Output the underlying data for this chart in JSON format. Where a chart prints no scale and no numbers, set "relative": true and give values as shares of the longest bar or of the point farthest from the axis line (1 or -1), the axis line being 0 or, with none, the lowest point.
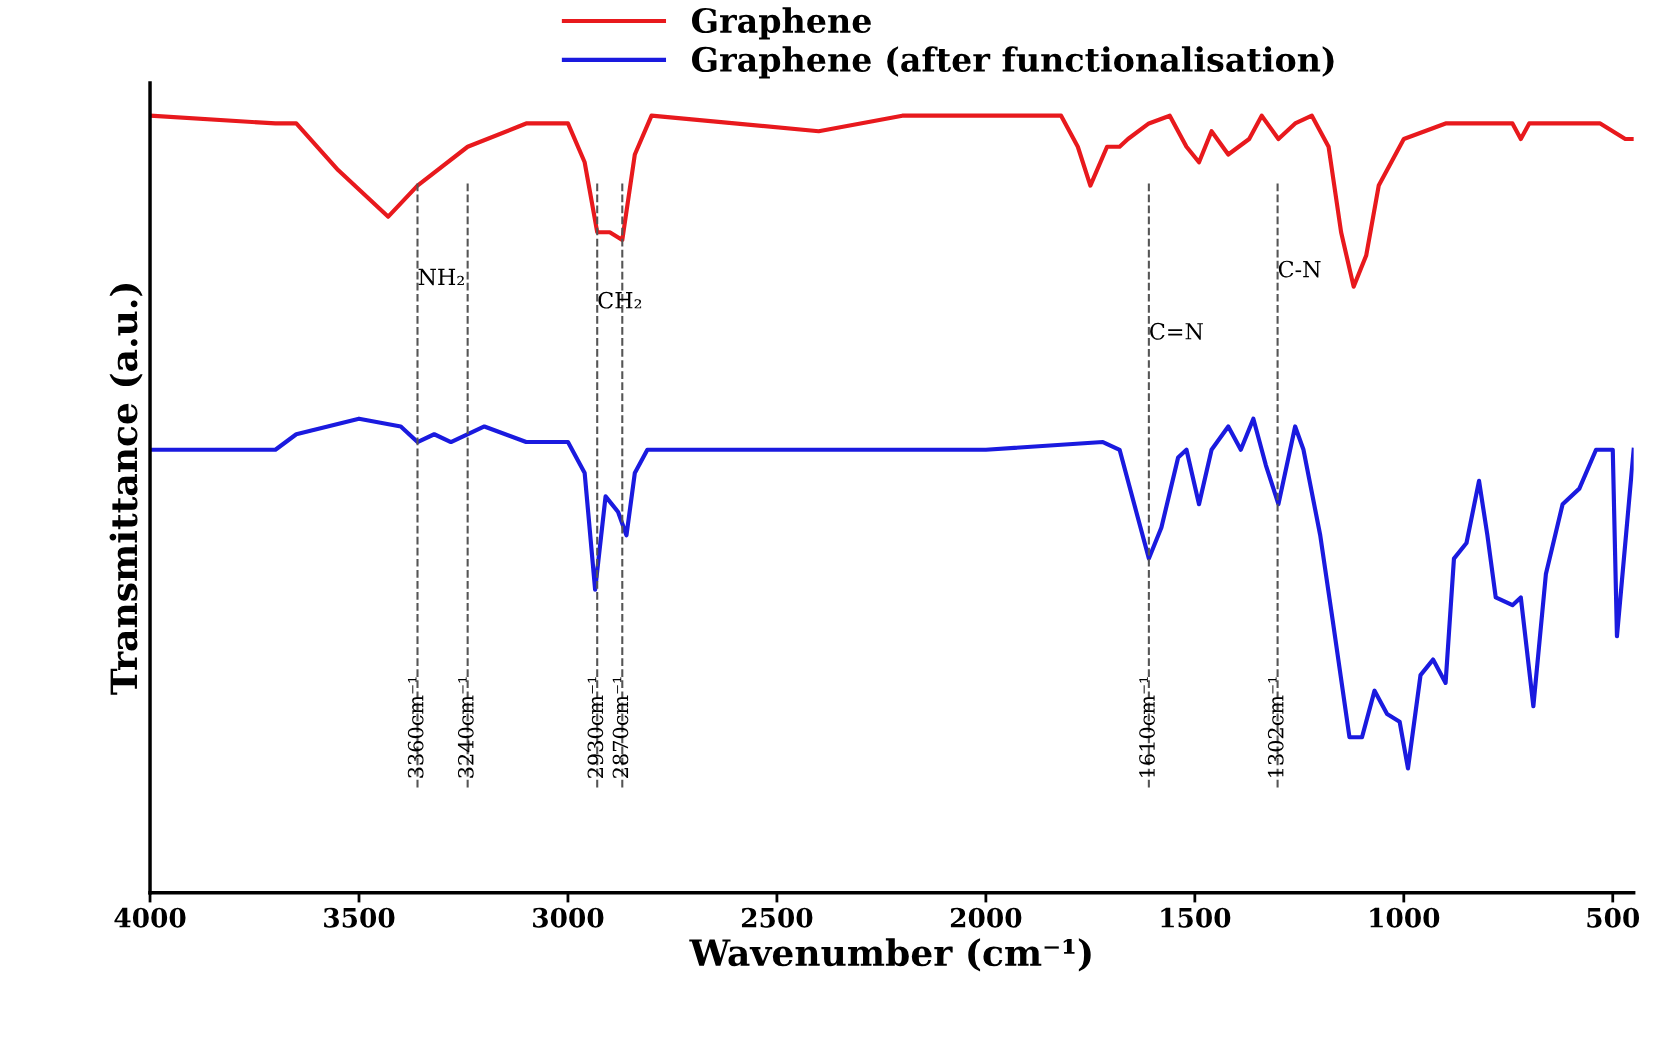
{
  "chart_data": {
    "type": "line",
    "xlabel": "Wavenumber (cm⁻¹)",
    "ylabel": "Transmittance (a.u.)",
    "relative": true,
    "xlim": [
      4000,
      450
    ],
    "xticks": [
      4000,
      3500,
      3000,
      2500,
      2000,
      1500,
      1000,
      500
    ],
    "legend": "top",
    "grid": false,
    "series": [
      {
        "name": "Graphene",
        "color": "#e8191d",
        "x": [
          4000,
          3700,
          3650,
          3550,
          3430,
          3360,
          3240,
          3100,
          3000,
          2960,
          2930,
          2900,
          2870,
          2840,
          2800,
          2400,
          2200,
          1820,
          1780,
          1750,
          1710,
          1680,
          1660,
          1610,
          1560,
          1520,
          1490,
          1460,
          1420,
          1370,
          1340,
          1300,
          1260,
          1220,
          1180,
          1150,
          1120,
          1090,
          1060,
          1000,
          900,
          740,
          720,
          700,
          530,
          500,
          470,
          450
        ],
        "values": [
          1.0,
          0.99,
          0.99,
          0.93,
          0.87,
          0.91,
          0.96,
          0.99,
          0.99,
          0.94,
          0.85,
          0.85,
          0.84,
          0.95,
          1.0,
          0.98,
          1.0,
          1.0,
          0.96,
          0.91,
          0.96,
          0.96,
          0.97,
          0.99,
          1.0,
          0.96,
          0.94,
          0.98,
          0.95,
          0.97,
          1.0,
          0.97,
          0.99,
          1.0,
          0.96,
          0.85,
          0.78,
          0.82,
          0.91,
          0.97,
          0.99,
          0.99,
          0.97,
          0.99,
          0.99,
          0.98,
          0.97,
          0.97
        ]
      },
      {
        "name": "Graphene (after functionalisation)",
        "color": "#1a1adf",
        "x": [
          4000,
          3700,
          3650,
          3500,
          3400,
          3360,
          3320,
          3280,
          3200,
          3100,
          3000,
          2960,
          2935,
          2910,
          2880,
          2860,
          2840,
          2810,
          2000,
          1720,
          1680,
          1640,
          1610,
          1580,
          1540,
          1520,
          1490,
          1460,
          1420,
          1390,
          1360,
          1330,
          1300,
          1260,
          1240,
          1200,
          1170,
          1130,
          1100,
          1070,
          1040,
          1010,
          990,
          960,
          930,
          900,
          880,
          850,
          820,
          800,
          780,
          740,
          720,
          690,
          660,
          620,
          580,
          540,
          500,
          490,
          450
        ],
        "values": [
          0.57,
          0.57,
          0.59,
          0.61,
          0.6,
          0.58,
          0.59,
          0.58,
          0.6,
          0.58,
          0.58,
          0.54,
          0.39,
          0.51,
          0.49,
          0.46,
          0.54,
          0.57,
          0.57,
          0.58,
          0.57,
          0.49,
          0.43,
          0.47,
          0.56,
          0.57,
          0.5,
          0.57,
          0.6,
          0.57,
          0.61,
          0.55,
          0.5,
          0.6,
          0.57,
          0.46,
          0.35,
          0.2,
          0.2,
          0.26,
          0.23,
          0.22,
          0.16,
          0.28,
          0.3,
          0.27,
          0.43,
          0.45,
          0.53,
          0.46,
          0.38,
          0.37,
          0.38,
          0.24,
          0.41,
          0.5,
          0.52,
          0.57,
          0.57,
          0.33,
          0.57
        ]
      }
    ],
    "ref_lines": [
      {
        "axis": "x",
        "value": 3360,
        "label": "3360cm⁻¹",
        "color": "#555555",
        "line_style": "dashed"
      },
      {
        "axis": "x",
        "value": 3240,
        "label": "3240cm⁻¹",
        "color": "#555555",
        "line_style": "dashed"
      },
      {
        "axis": "x",
        "value": 2930,
        "label": "2930cm⁻¹",
        "color": "#555555",
        "line_style": "dashed"
      },
      {
        "axis": "x",
        "value": 2870,
        "label": "2870cm⁻¹",
        "color": "#555555",
        "line_style": "dashed"
      },
      {
        "axis": "x",
        "value": 1610,
        "label": "1610cm⁻¹",
        "color": "#555555",
        "line_style": "dashed"
      },
      {
        "axis": "x",
        "value": 1302,
        "label": "1302cm⁻¹",
        "color": "#555555",
        "line_style": "dashed"
      }
    ],
    "annotations": [
      {
        "text": "NH₂",
        "x": 3360,
        "y": 0.79
      },
      {
        "text": "CH₂",
        "x": 2930,
        "y": 0.76
      },
      {
        "text": "C=N",
        "x": 1610,
        "y": 0.72
      },
      {
        "text": "C-N",
        "x": 1302,
        "y": 0.8
      }
    ]
  }
}
